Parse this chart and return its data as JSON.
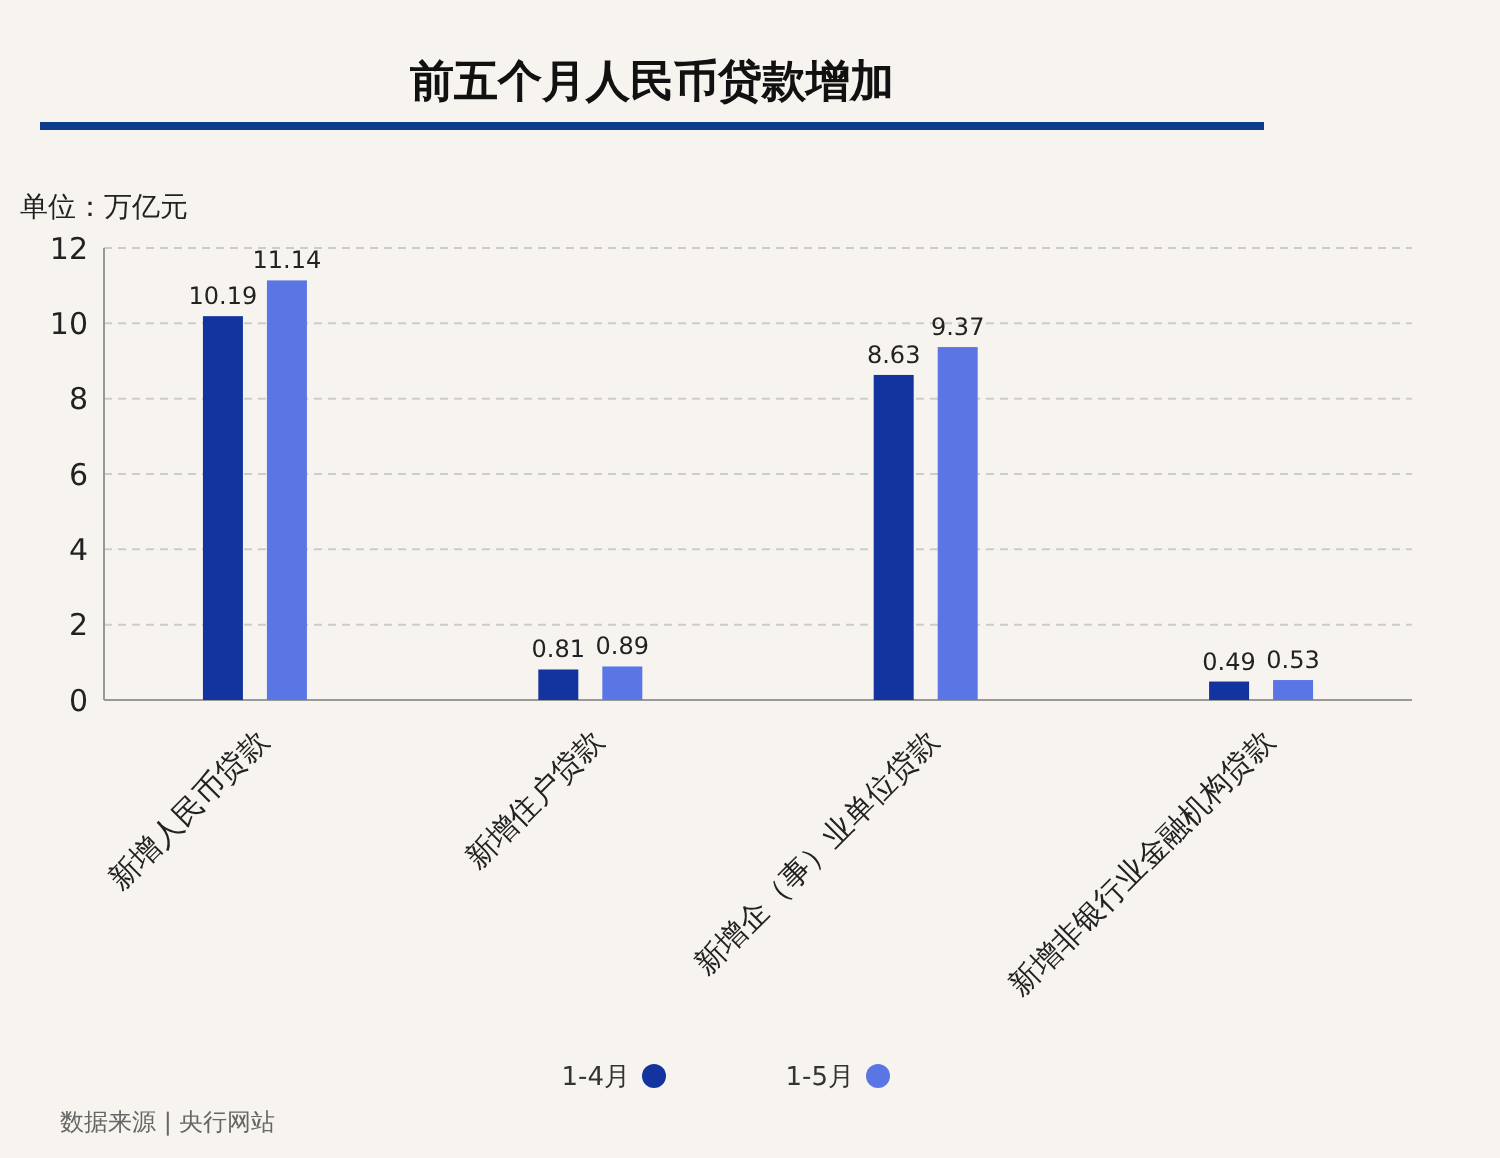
{
  "chart_data": {
    "type": "bar",
    "title": "前五个月人民币贷款增加",
    "ylabel": "单位：万亿元",
    "categories": [
      "新增人民币贷款",
      "新增住户贷款",
      "新增企（事）业单位贷款",
      "新增非银行业金融机构贷款"
    ],
    "series": [
      {
        "name": "1-4月",
        "color": "#13349e",
        "values": [
          10.19,
          0.81,
          8.63,
          0.49
        ]
      },
      {
        "name": "1-5月",
        "color": "#5a76e4",
        "values": [
          11.14,
          0.89,
          9.37,
          0.53
        ]
      }
    ],
    "ylim": [
      0,
      12
    ],
    "yticks": [
      0,
      2,
      4,
      6,
      8,
      10,
      12
    ],
    "grid": "y",
    "legend": "bottom",
    "data_labels": true,
    "annotations": [
      "数据来源 | 央行网站"
    ]
  }
}
